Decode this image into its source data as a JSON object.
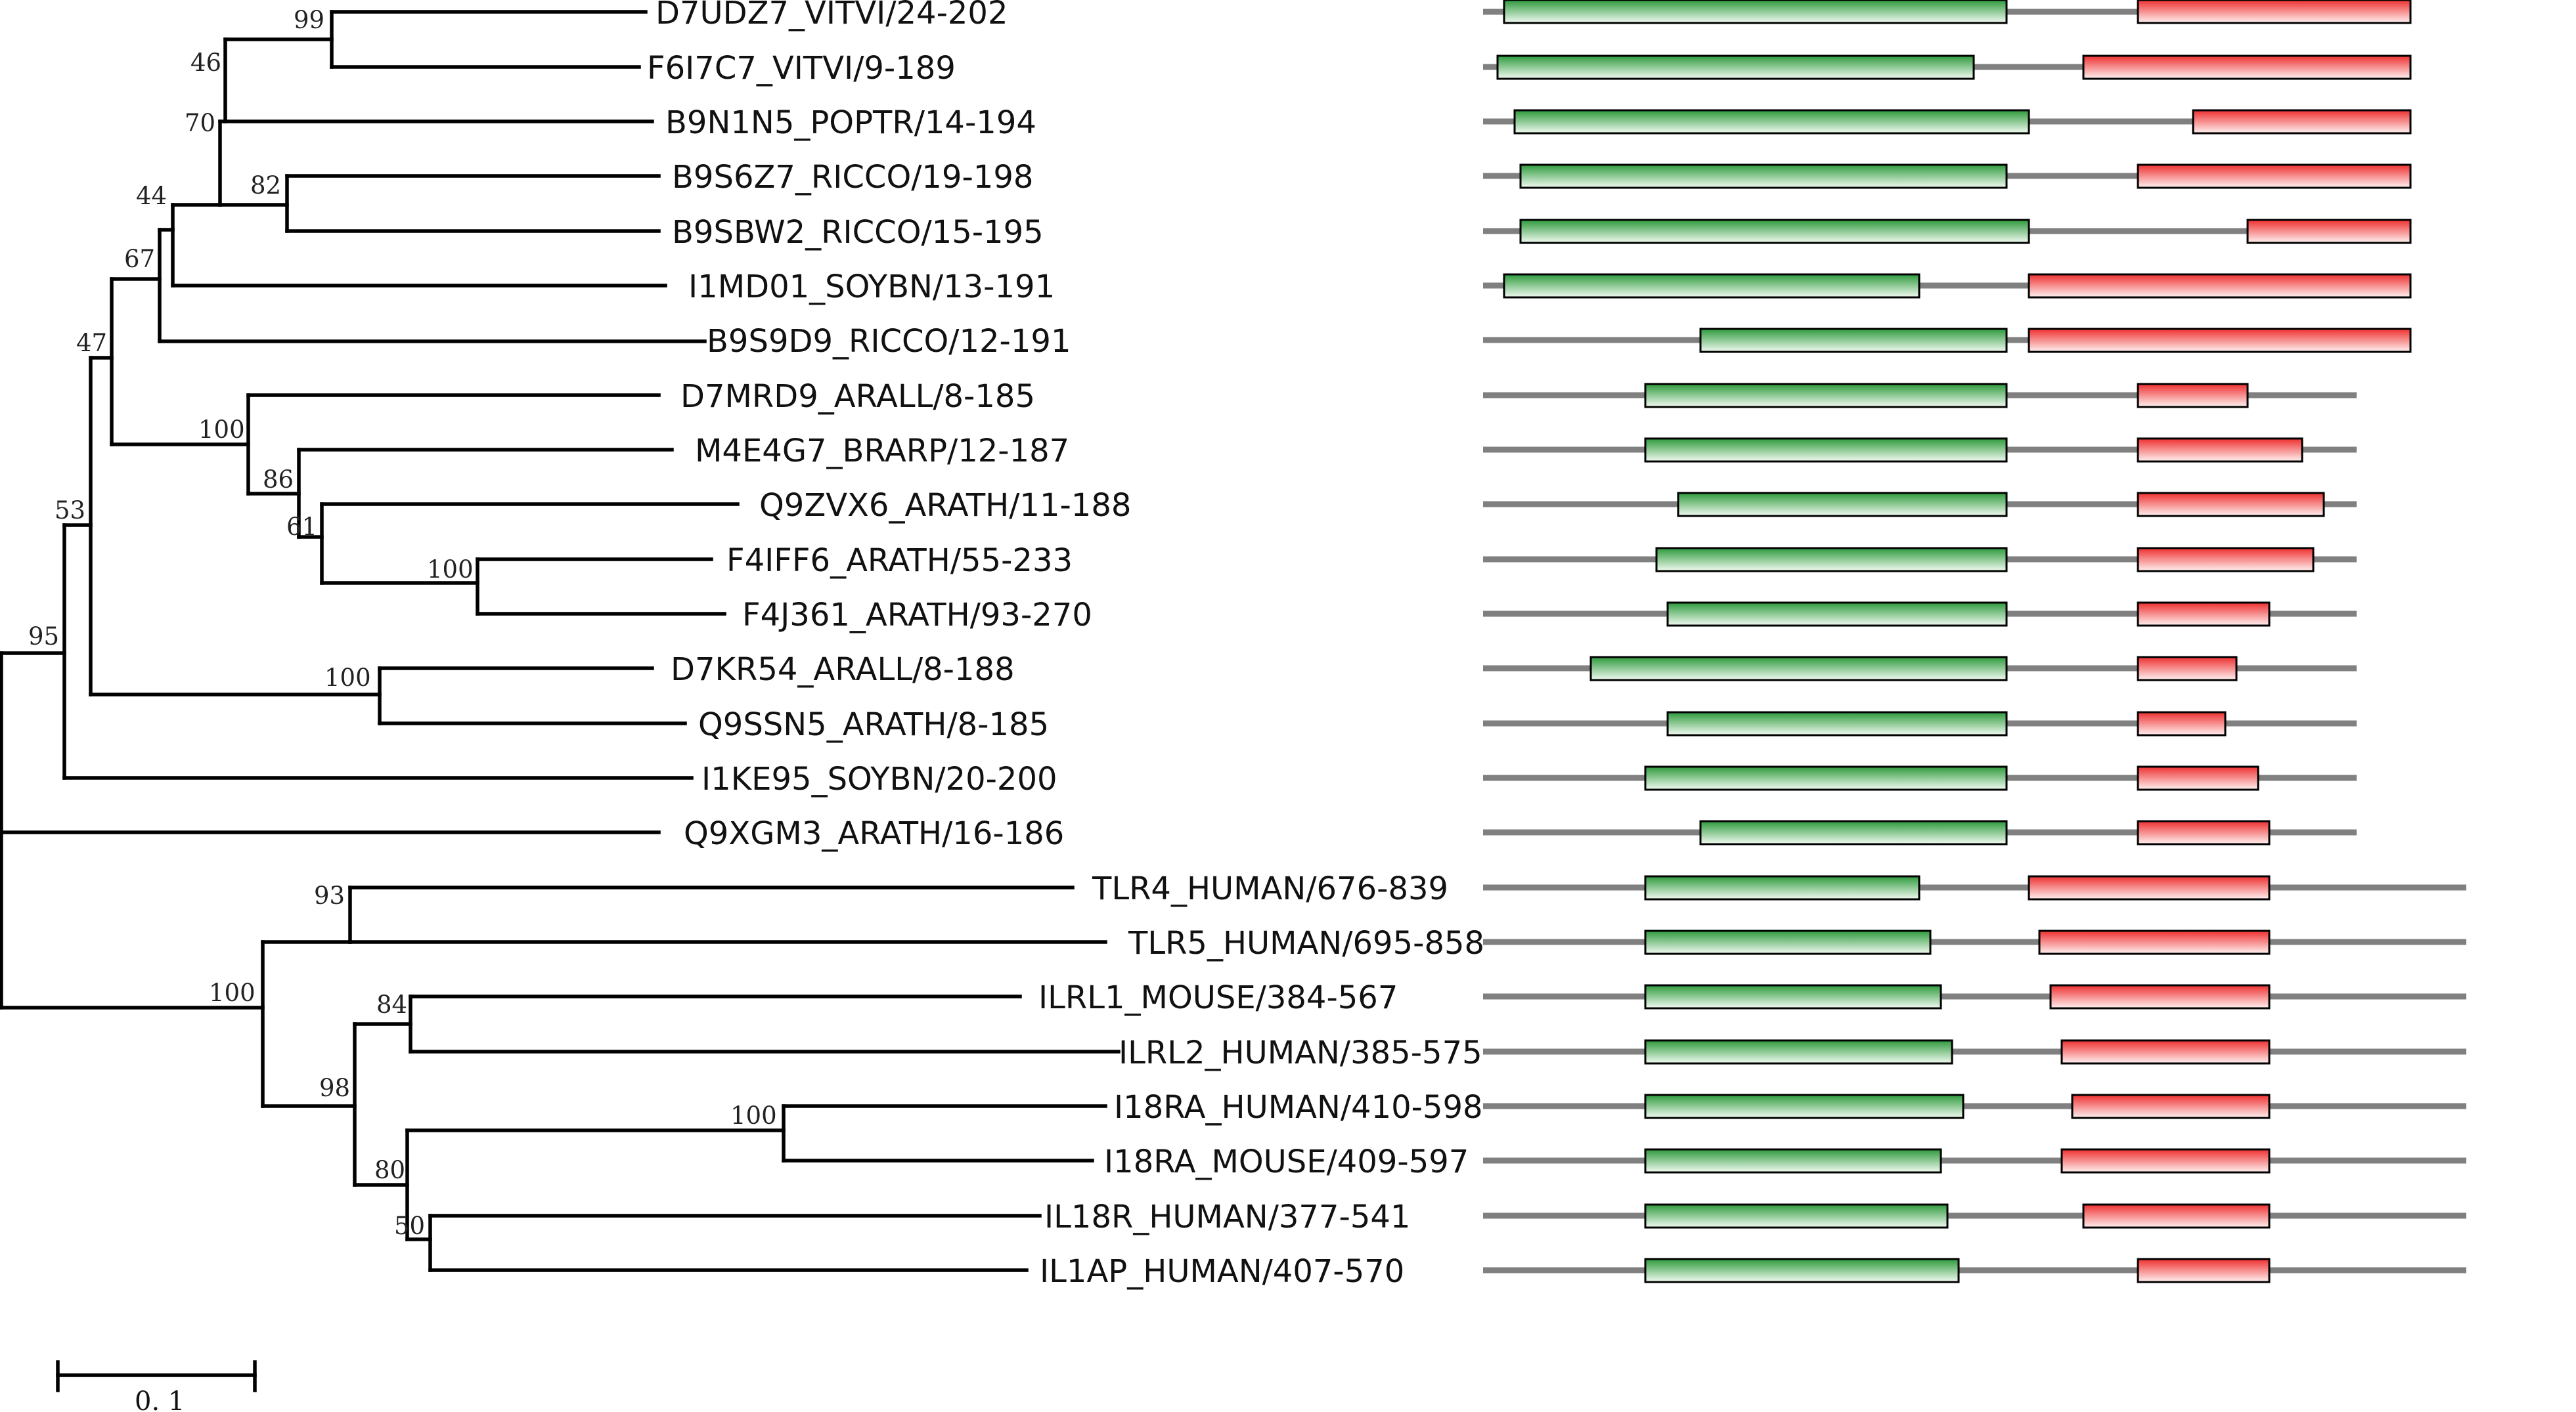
{
  "figure": {
    "leaves": [
      "D7UDZ7_VITVI/24-202",
      "F6I7C7_VITVI/9-189",
      "B9N1N5_POPTR/14-194",
      "B9S6Z7_RICCO/19-198",
      "B9SBW2_RICCO/15-195",
      "I1MD01_SOYBN/13-191",
      "B9S9D9_RICCO/12-191",
      "D7MRD9_ARALL/8-185",
      "M4E4G7_BRARP/12-187",
      "Q9ZVX6_ARATH/11-188",
      "F4IFF6_ARATH/55-233",
      "F4J361_ARATH/93-270",
      "D7KR54_ARALL/8-188",
      "Q9SSN5_ARATH/8-185",
      "I1KE95_SOYBN/20-200",
      "Q9XGM3_ARATH/16-186",
      "TLR4_HUMAN/676-839",
      "TLR5_HUMAN/695-858",
      "ILRL1_MOUSE/384-567",
      "ILRL2_HUMAN/385-575",
      "I18RA_HUMAN/410-598",
      "I18RA_MOUSE/409-597",
      "IL18R_HUMAN/377-541",
      "IL1AP_HUMAN/407-570"
    ],
    "support_values": [
      "99",
      "46",
      "70",
      "82",
      "44",
      "67",
      "47",
      "100",
      "86",
      "61",
      "100",
      "100",
      "53",
      "95",
      "93",
      "100",
      "84",
      "98",
      "100",
      "80",
      "50"
    ],
    "scale_bar_label": "0. 1",
    "colors": {
      "domain_green": "#2e9a3c",
      "domain_red": "#ee3030",
      "backbone": "#808080",
      "branch": "#000000"
    },
    "domain_track_icon": "protein-domain-architecture"
  }
}
